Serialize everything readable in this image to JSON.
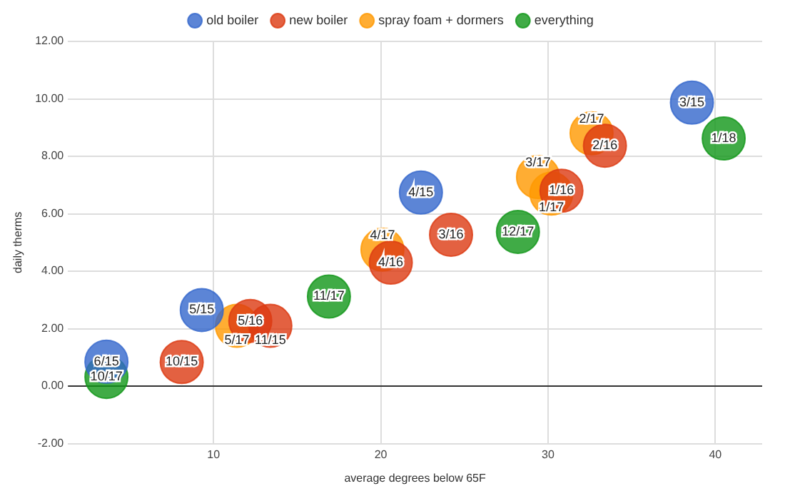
{
  "chart_data": {
    "type": "bubble",
    "xlabel": "average degrees below 65F",
    "ylabel": "daily therms",
    "xlim": [
      1.3,
      42.8
    ],
    "xticks": [
      10,
      20,
      30,
      40
    ],
    "ylim": [
      -2,
      12
    ],
    "yticks": [
      {
        "value": -2,
        "label": "-2.00"
      },
      {
        "value": 0,
        "label": "0.00"
      },
      {
        "value": 2,
        "label": "2.00"
      },
      {
        "value": 4,
        "label": "4.00"
      },
      {
        "value": 6,
        "label": "6.00"
      },
      {
        "value": 8,
        "label": "8.00"
      },
      {
        "value": 10,
        "label": "10.00"
      },
      {
        "value": 12,
        "label": "12.00"
      }
    ],
    "grid": true,
    "legend": "top",
    "ref_lines": [
      {
        "axis": "y",
        "value": 0,
        "color": "#333333"
      }
    ],
    "series": [
      {
        "name": "old boiler",
        "color": "#3366cc",
        "x": [
          3.6,
          9.3,
          22.4,
          38.6
        ],
        "values": [
          0.85,
          2.65,
          6.74,
          9.87
        ],
        "sizes": [
          1,
          1,
          1,
          1
        ]
      },
      {
        "name": "new boiler",
        "color": "#dc3912",
        "x": [
          8.1,
          12.2,
          13.4,
          20.6,
          24.2,
          30.8,
          33.4
        ],
        "values": [
          0.84,
          2.27,
          2.1,
          4.3,
          5.27,
          6.8,
          8.37
        ],
        "sizes": [
          1,
          1,
          1,
          1,
          1,
          1,
          1
        ]
      },
      {
        "name": "spray foam + dormers",
        "color": "#ff9900",
        "x": [
          11.4,
          20.1,
          29.4,
          30.2,
          32.6
        ],
        "values": [
          2.1,
          4.75,
          7.28,
          6.7,
          8.8
        ],
        "sizes": [
          1,
          1,
          1,
          1,
          1
        ]
      },
      {
        "name": "everything",
        "color": "#109618",
        "x": [
          3.6,
          16.9,
          28.2,
          40.5
        ],
        "values": [
          0.32,
          3.12,
          5.37,
          8.62
        ],
        "sizes": [
          1,
          1,
          1,
          1
        ]
      }
    ],
    "annotations": [
      {
        "text": "6/15",
        "x": 3.6,
        "y": 0.85
      },
      {
        "text": "5/15",
        "x": 9.3,
        "y": 2.65
      },
      {
        "text": "4/15",
        "x": 22.4,
        "y": 6.74
      },
      {
        "text": "3/15",
        "x": 38.6,
        "y": 9.87
      },
      {
        "text": "10/15",
        "x": 8.1,
        "y": 0.84
      },
      {
        "text": "5/16",
        "x": 12.2,
        "y": 2.27
      },
      {
        "text": "11/15",
        "x": 13.4,
        "y": 2.1
      },
      {
        "text": "4/16",
        "x": 20.6,
        "y": 4.3
      },
      {
        "text": "3/16",
        "x": 24.2,
        "y": 5.27
      },
      {
        "text": "1/16",
        "x": 30.8,
        "y": 6.8
      },
      {
        "text": "2/16",
        "x": 33.4,
        "y": 8.37
      },
      {
        "text": "5/17",
        "x": 11.4,
        "y": 2.1
      },
      {
        "text": "4/17",
        "x": 20.1,
        "y": 4.75
      },
      {
        "text": "3/17",
        "x": 29.4,
        "y": 7.28
      },
      {
        "text": "1/17",
        "x": 30.2,
        "y": 6.7
      },
      {
        "text": "2/17",
        "x": 32.6,
        "y": 8.8
      },
      {
        "text": "10/17",
        "x": 3.6,
        "y": 0.32
      },
      {
        "text": "11/17",
        "x": 16.9,
        "y": 3.12
      },
      {
        "text": "12/17",
        "x": 28.2,
        "y": 5.37
      },
      {
        "text": "1/18",
        "x": 40.5,
        "y": 8.62
      }
    ]
  }
}
